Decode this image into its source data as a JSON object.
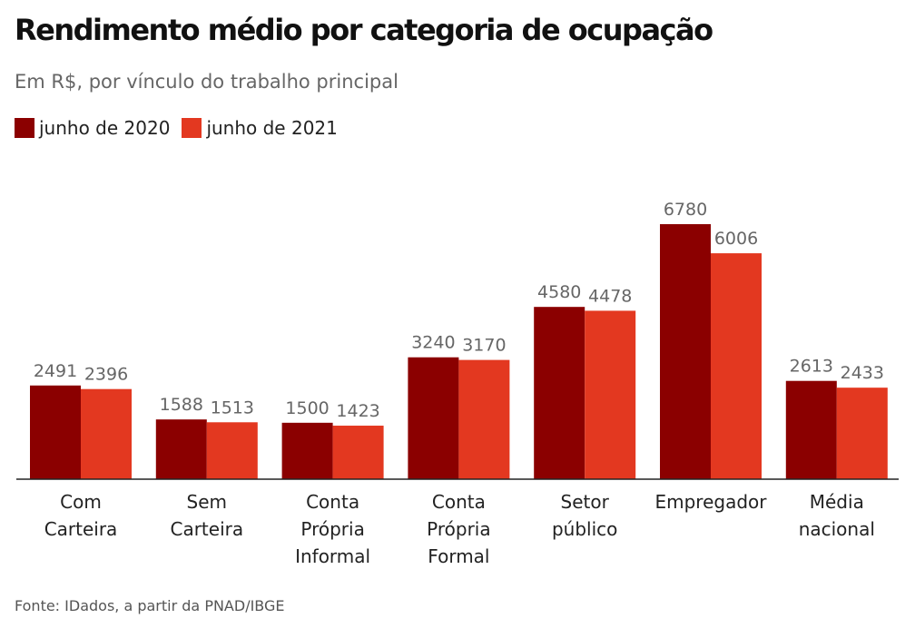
{
  "title": "Rendimento médio por categoria de ocupação",
  "subtitle": "Em R$, por vínculo do trabalho principal",
  "source": "Fonte: IDados, a partir da PNAD/IBGE",
  "colors": {
    "series_2020": "#8b0000",
    "series_2021": "#e33820",
    "value_label": "#666666",
    "axis": "#222222"
  },
  "chart_data": {
    "type": "bar",
    "title": "Rendimento médio por categoria de ocupação",
    "subtitle": "Em R$, por vínculo do trabalho principal",
    "xlabel": "",
    "ylabel": "",
    "ylim": [
      0,
      6780
    ],
    "grid": false,
    "legend_position": "top-left",
    "categories": [
      "Com Carteira",
      "Sem Carteira",
      "Conta Própria Informal",
      "Conta Própria Formal",
      "Setor público",
      "Empregador",
      "Média nacional"
    ],
    "category_label_lines": [
      [
        "Com",
        "Carteira"
      ],
      [
        "Sem",
        "Carteira"
      ],
      [
        "Conta",
        "Própria",
        "Informal"
      ],
      [
        "Conta",
        "Própria",
        "Formal"
      ],
      [
        "Setor",
        "público"
      ],
      [
        "Empregador"
      ],
      [
        "Média",
        "nacional"
      ]
    ],
    "series": [
      {
        "name": "junho de 2020",
        "values": [
          2491,
          1588,
          1500,
          3240,
          4580,
          6780,
          2613
        ]
      },
      {
        "name": "junho de 2021",
        "values": [
          2396,
          1513,
          1423,
          3170,
          4478,
          6006,
          2433
        ]
      }
    ]
  }
}
